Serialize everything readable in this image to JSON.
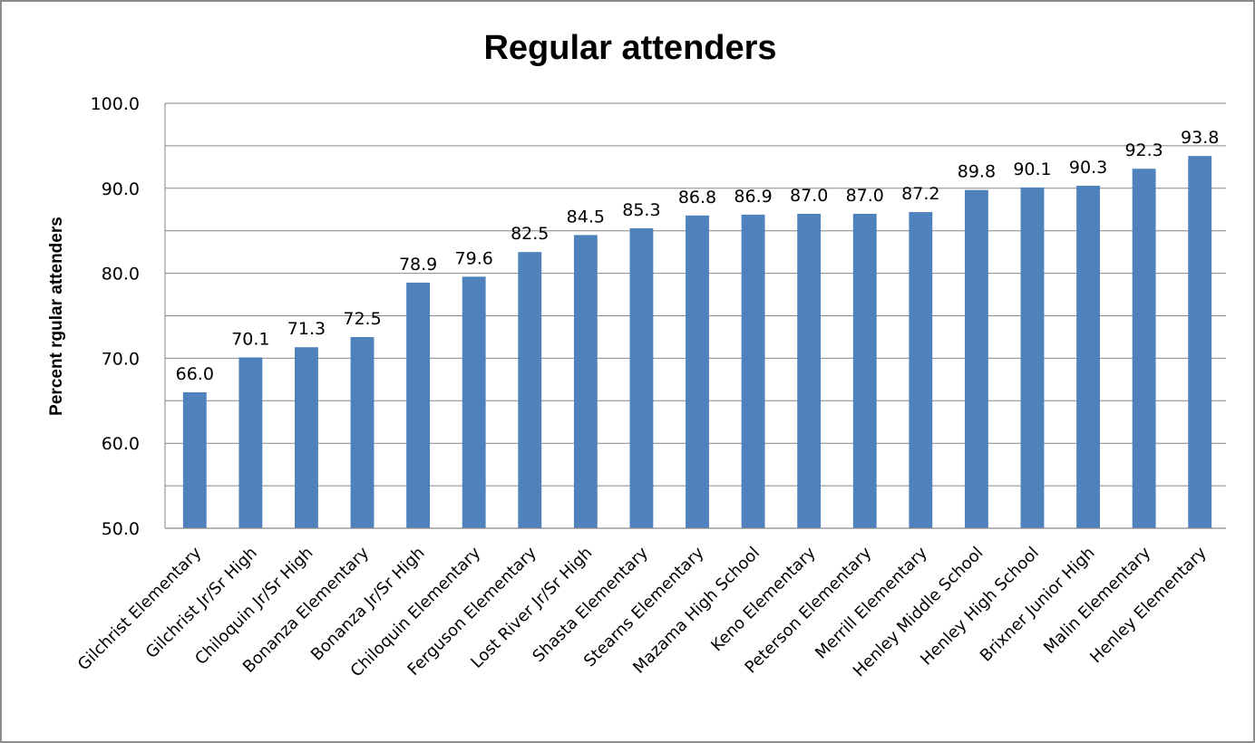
{
  "chart_data": {
    "type": "bar",
    "title": "Regular attenders",
    "xlabel": "",
    "ylabel": "Percent rgular attenders",
    "ylim": [
      50,
      100
    ],
    "yticks": [
      "50.0",
      "60.0",
      "70.0",
      "80.0",
      "90.0",
      "100.0"
    ],
    "grid": true,
    "bar_color": "#4f81bd",
    "categories": [
      "Gilchrist Elementary",
      "Gilchrist Jr/Sr High",
      "Chiloquin Jr/Sr High",
      "Bonanza Elementary",
      "Bonanza Jr/Sr High",
      "Chiloquin Elementary",
      "Ferguson Elementary",
      "Lost River Jr/Sr High",
      "Shasta Elementary",
      "Stearns Elementary",
      "Mazama High School",
      "Keno Elementary",
      "Peterson Elementary",
      "Merrill Elementary",
      "Henley Middle School",
      "Henley High School",
      "Brixner Junior High",
      "Malin Elementary",
      "Henley Elementary"
    ],
    "values": [
      66.0,
      70.1,
      71.3,
      72.5,
      78.9,
      79.6,
      82.5,
      84.5,
      85.3,
      86.8,
      86.9,
      87.0,
      87.0,
      87.2,
      89.8,
      90.1,
      90.3,
      92.3,
      93.8
    ],
    "data_labels": [
      "66.0",
      "70.1",
      "71.3",
      "72.5",
      "78.9",
      "79.6",
      "82.5",
      "84.5",
      "85.3",
      "86.8",
      "86.9",
      "87.0",
      "87.0",
      "87.2",
      "89.8",
      "90.1",
      "90.3",
      "92.3",
      "93.8"
    ]
  }
}
